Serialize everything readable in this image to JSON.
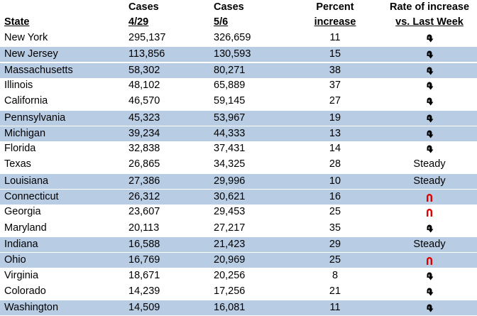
{
  "table": {
    "columns": [
      {
        "lines": [
          "State"
        ]
      },
      {
        "lines": [
          "Cases",
          "4/29"
        ]
      },
      {
        "lines": [
          "Cases",
          "5/6"
        ]
      },
      {
        "lines": [
          "Percent",
          "increase"
        ]
      },
      {
        "lines": [
          "Rate of increase",
          "vs. Last Week"
        ]
      }
    ],
    "rows": [
      {
        "state": "New York",
        "cases_4_29": "295,137",
        "cases_5_6": "326,659",
        "percent": 11,
        "rate": {
          "icon_color": "#000000"
        }
      },
      {
        "state": "New Jersey",
        "cases_4_29": "113,856",
        "cases_5_6": "130,593",
        "percent": 15,
        "rate": {
          "icon_color": "#000000"
        }
      },
      {
        "state": "Massachusetts",
        "cases_4_29": "58,302",
        "cases_5_6": "80,271",
        "percent": 38,
        "rate": {
          "icon_color": "#000000"
        }
      },
      {
        "state": "Illinois",
        "cases_4_29": "48,102",
        "cases_5_6": "65,889",
        "percent": 37,
        "rate": {
          "icon_color": "#000000"
        }
      },
      {
        "state": "California",
        "cases_4_29": "46,570",
        "cases_5_6": "59,145",
        "percent": 27,
        "rate": {
          "icon_color": "#000000"
        }
      },
      {
        "state": "Pennsylvania",
        "cases_4_29": "45,323",
        "cases_5_6": "53,967",
        "percent": 19,
        "rate": {
          "icon_color": "#000000"
        }
      },
      {
        "state": "Michigan",
        "cases_4_29": "39,234",
        "cases_5_6": "44,333",
        "percent": 13,
        "rate": {
          "icon_color": "#000000"
        }
      },
      {
        "state": "Florida",
        "cases_4_29": "32,838",
        "cases_5_6": "37,431",
        "percent": 14,
        "rate": {
          "icon_color": "#000000"
        }
      },
      {
        "state": "Texas",
        "cases_4_29": "26,865",
        "cases_5_6": "34,325",
        "percent": 28,
        "rate": "Steady"
      },
      {
        "state": "Louisiana",
        "cases_4_29": "27,386",
        "cases_5_6": "29,996",
        "percent": 10,
        "rate": "Steady"
      },
      {
        "state": "Connecticut",
        "cases_4_29": "26,312",
        "cases_5_6": "30,621",
        "percent": 16,
        "rate": {
          "icon_color": "#e00000"
        }
      },
      {
        "state": "Georgia",
        "cases_4_29": "23,607",
        "cases_5_6": "29,453",
        "percent": 25,
        "rate": {
          "icon_color": "#e00000"
        }
      },
      {
        "state": "Maryland",
        "cases_4_29": "20,113",
        "cases_5_6": "27,217",
        "percent": 35,
        "rate": {
          "icon_color": "#000000"
        }
      },
      {
        "state": "Indiana",
        "cases_4_29": "16,588",
        "cases_5_6": "21,423",
        "percent": 29,
        "rate": "Steady"
      },
      {
        "state": "Ohio",
        "cases_4_29": "16,769",
        "cases_5_6": "20,969",
        "percent": 25,
        "rate": {
          "icon_color": "#e00000"
        }
      },
      {
        "state": "Virginia",
        "cases_4_29": "18,671",
        "cases_5_6": "20,256",
        "percent": 8,
        "rate": {
          "icon_color": "#000000"
        }
      },
      {
        "state": "Colorado",
        "cases_4_29": "14,239",
        "cases_5_6": "17,256",
        "percent": 21,
        "rate": {
          "icon_color": "#000000"
        }
      },
      {
        "state": "Washington",
        "cases_4_29": "14,509",
        "cases_5_6": "16,081",
        "percent": 11,
        "rate": {
          "icon_color": "#000000"
        }
      }
    ]
  }
}
